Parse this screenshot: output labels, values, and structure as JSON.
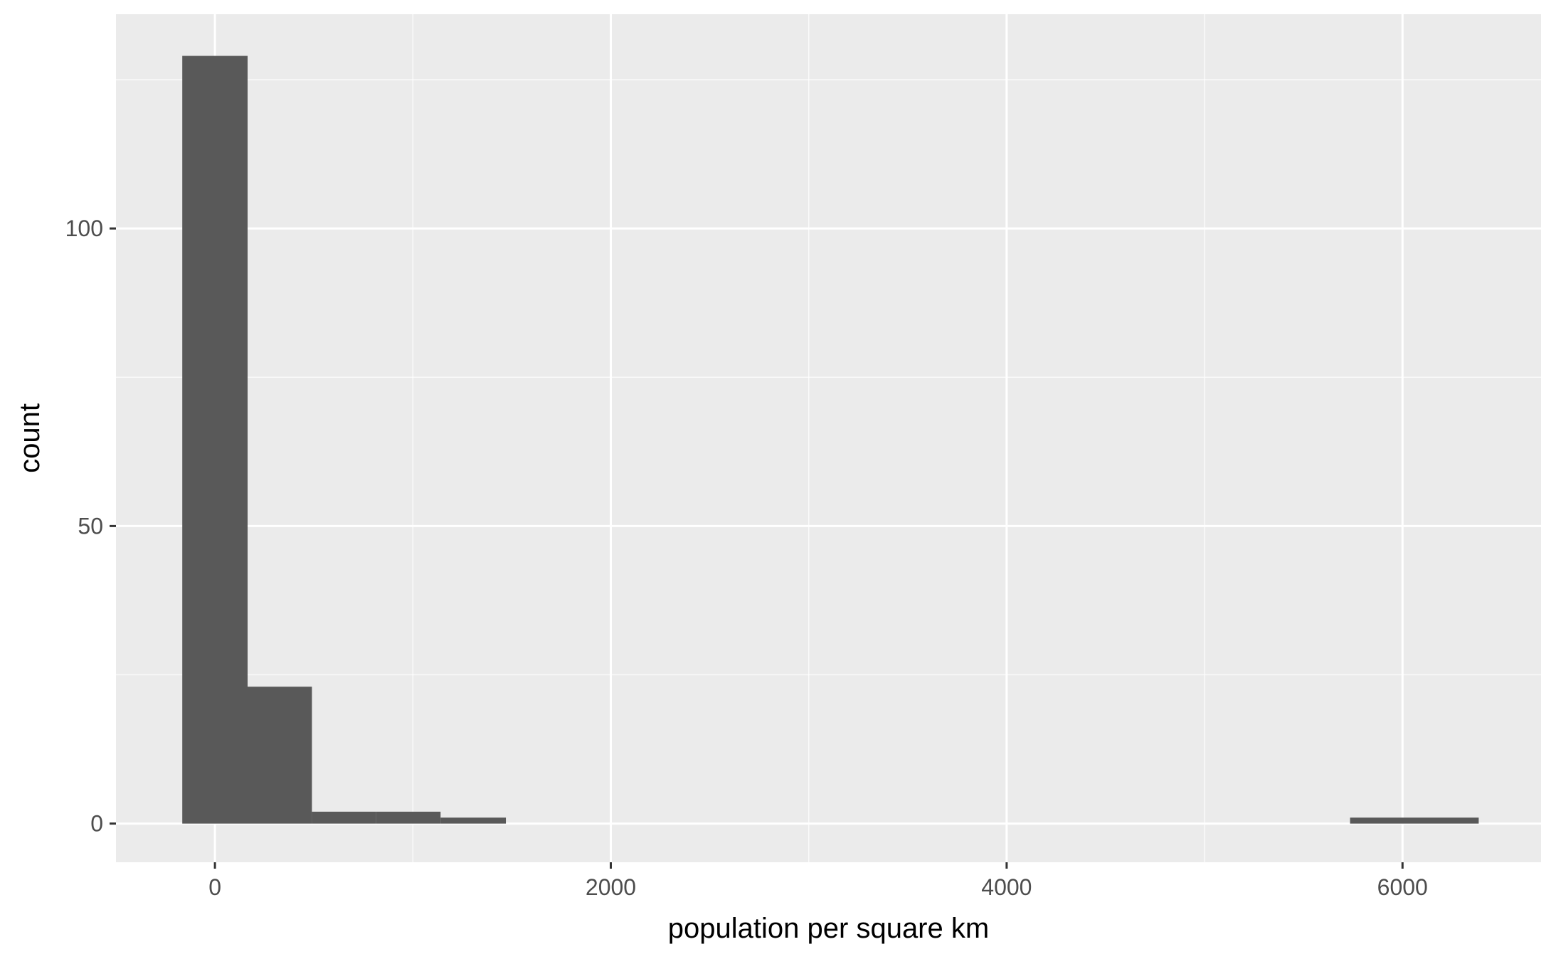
{
  "chart_data": {
    "type": "bar",
    "title": "",
    "xlabel": "population per square km",
    "ylabel": "count",
    "xlim": [
      -500,
      6700
    ],
    "ylim": [
      -6.5,
      136
    ],
    "x_ticks": [
      0,
      2000,
      4000,
      6000
    ],
    "x_tick_labels": [
      "0",
      "2000",
      "4000",
      "6000"
    ],
    "y_ticks": [
      0,
      50,
      100
    ],
    "y_tick_labels": [
      "0",
      "50",
      "100"
    ],
    "x_minor_grid": [
      1000,
      3000,
      5000
    ],
    "y_minor_grid": [
      25,
      75,
      125
    ],
    "grid": true,
    "bins": [
      {
        "x0": -165,
        "x1": 165,
        "count": 129
      },
      {
        "x0": 165,
        "x1": 490,
        "count": 23
      },
      {
        "x0": 490,
        "x1": 815,
        "count": 2
      },
      {
        "x0": 815,
        "x1": 1140,
        "count": 2
      },
      {
        "x0": 1140,
        "x1": 1470,
        "count": 1
      },
      {
        "x0": 5735,
        "x1": 6385,
        "count": 1
      }
    ],
    "colors": {
      "panel_background": "#ebebeb",
      "grid_major": "#ffffff",
      "grid_minor": "#f5f5f5",
      "bar_fill": "#595959",
      "tick_mark": "#333333",
      "tick_label": "#4d4d4d"
    }
  }
}
